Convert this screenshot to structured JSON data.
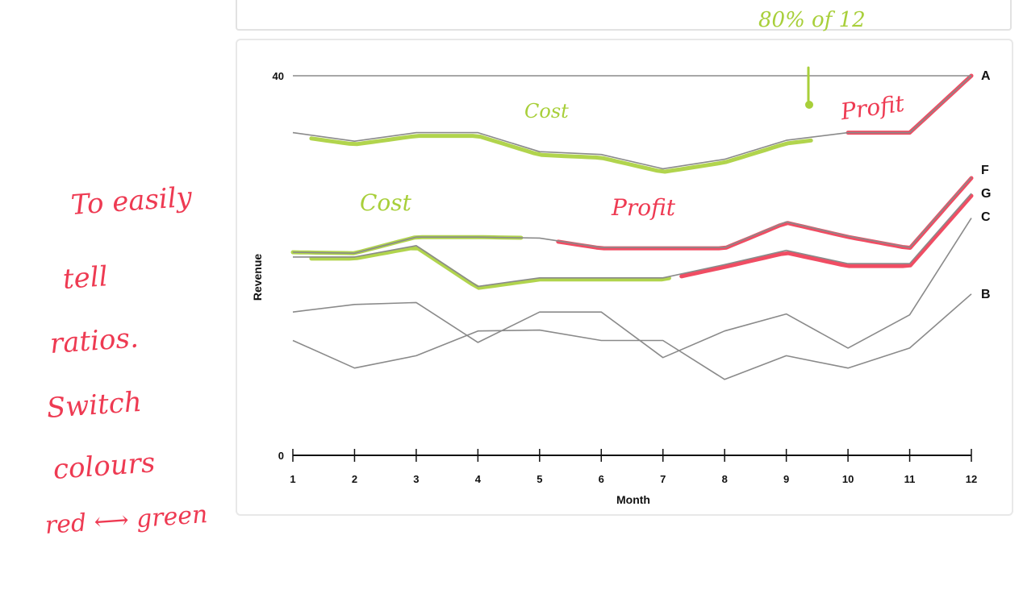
{
  "chart_data": {
    "type": "line",
    "xlabel": "Month",
    "ylabel": "Revenue",
    "x": [
      1,
      2,
      3,
      4,
      5,
      6,
      7,
      8,
      9,
      10,
      11,
      12
    ],
    "ylim": [
      0,
      40
    ],
    "yticks": [
      "0",
      "40"
    ],
    "grid": false,
    "series": [
      {
        "name": "A",
        "values": [
          34,
          33.1,
          34,
          34,
          32,
          31.7,
          30.2,
          31.2,
          33.2,
          34,
          34,
          40
        ]
      },
      {
        "name": "F",
        "values": [
          21.4,
          21.3,
          23,
          23,
          22.9,
          21.9,
          21.9,
          21.9,
          24.6,
          23.1,
          21.9,
          29.3
        ]
      },
      {
        "name": "G",
        "values": [
          20.9,
          20.9,
          22.1,
          17.8,
          18.7,
          18.7,
          18.7,
          20.1,
          21.6,
          20.2,
          20.2,
          27.6
        ]
      },
      {
        "name": "C",
        "values": [
          15.1,
          15.9,
          16.1,
          11.9,
          15.1,
          15.1,
          10.3,
          13.1,
          14.9,
          11.3,
          14.8,
          25
        ]
      },
      {
        "name": "B",
        "values": [
          12.1,
          9.2,
          10.5,
          13.1,
          13.2,
          12.1,
          12.1,
          8,
          10.5,
          9.2,
          11.3,
          17
        ]
      }
    ]
  },
  "colors": {
    "series_line": "#8a8a8a",
    "highlight_green": "#a8cf3a",
    "highlight_green_dark": "#5f9a2a",
    "highlight_red": "#ee3a52"
  },
  "annotations": {
    "top_note": "80% of 12",
    "cost_a": "Cost",
    "profit_a": "Profit",
    "cost_f": "Cost",
    "profit_f": "Profit",
    "side_note": [
      "To easily",
      "tell",
      "ratios.",
      "Switch",
      "colours",
      "red ⟷ green"
    ]
  }
}
